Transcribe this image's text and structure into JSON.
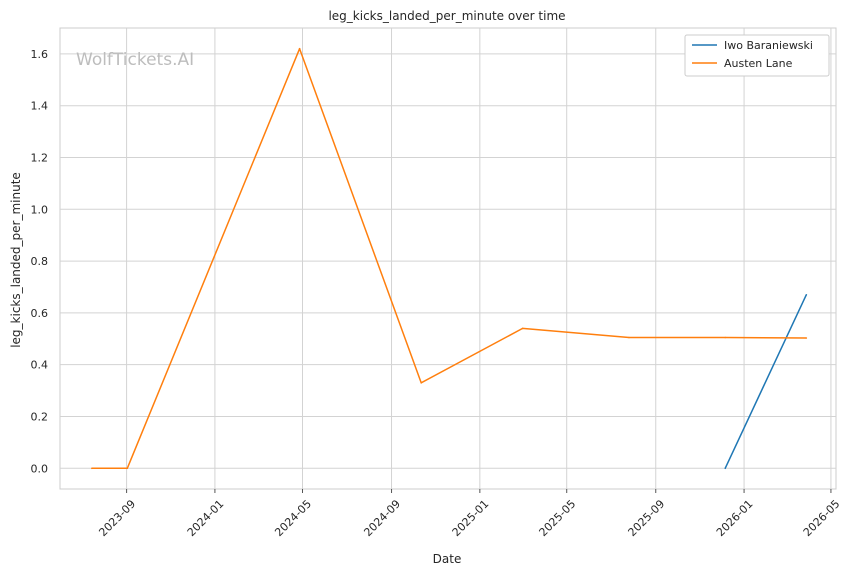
{
  "chart_data": {
    "type": "line",
    "title": "leg_kicks_landed_per_minute over time",
    "xlabel": "Date",
    "ylabel": "leg_kicks_landed_per_minute",
    "watermark": "WolfTickets.AI",
    "grid": true,
    "legend_position": "top-right",
    "xlim": [
      "2023-06-01",
      "2026-05-08"
    ],
    "ylim": [
      -0.08,
      1.7
    ],
    "x_ticks": [
      "2023-09",
      "2024-01",
      "2024-05",
      "2024-09",
      "2025-01",
      "2025-05",
      "2025-09",
      "2026-01",
      "2026-05"
    ],
    "y_ticks": [
      "0.0",
      "0.2",
      "0.4",
      "0.6",
      "0.8",
      "1.0",
      "1.2",
      "1.4",
      "1.6"
    ],
    "series": [
      {
        "name": "Iwo Baraniewski",
        "color": "#1f77b4",
        "points": [
          {
            "x": "2025-12-06",
            "y": 0.0
          },
          {
            "x": "2026-03-28",
            "y": 0.67
          }
        ]
      },
      {
        "name": "Austen Lane",
        "color": "#ff7f0e",
        "points": [
          {
            "x": "2023-07-15",
            "y": 0.0
          },
          {
            "x": "2023-09-02",
            "y": 0.0
          },
          {
            "x": "2024-04-27",
            "y": 1.62
          },
          {
            "x": "2024-10-12",
            "y": 0.33
          },
          {
            "x": "2025-03-01",
            "y": 0.54
          },
          {
            "x": "2025-07-26",
            "y": 0.505
          },
          {
            "x": "2025-12-06",
            "y": 0.505
          },
          {
            "x": "2026-03-28",
            "y": 0.503
          }
        ]
      }
    ]
  }
}
